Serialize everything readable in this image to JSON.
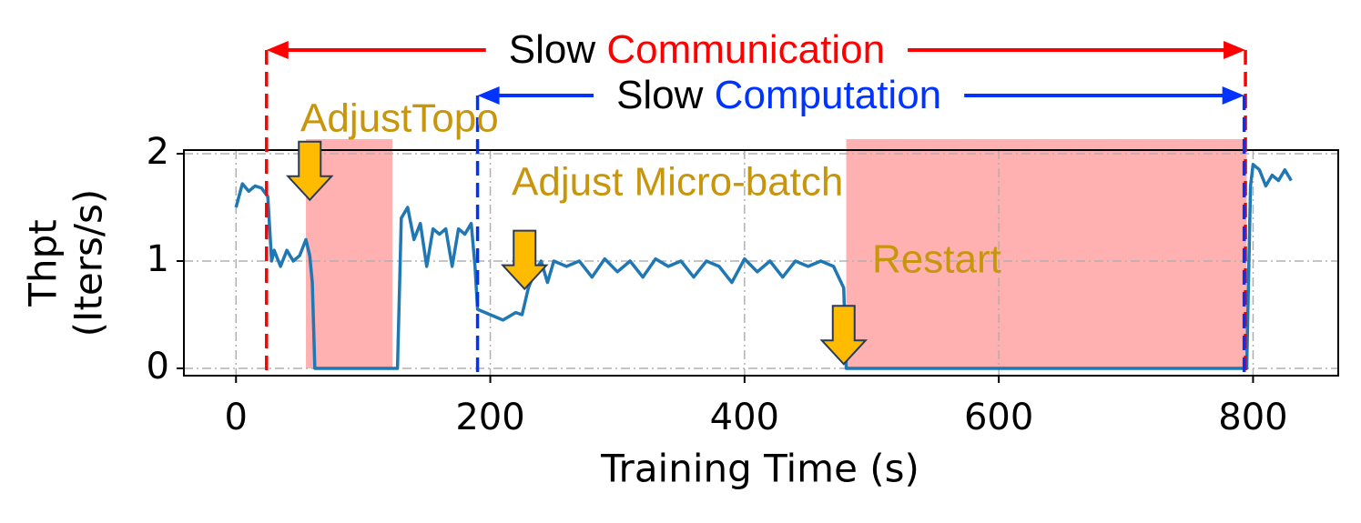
{
  "chart_data": {
    "type": "line",
    "xlabel": "Training Time (s)",
    "ylabel": [
      "Thpt",
      "(Iters/s)"
    ],
    "x": [
      0,
      5,
      10,
      15,
      20,
      25,
      28,
      30,
      35,
      40,
      45,
      50,
      55,
      58,
      60,
      62,
      120,
      127,
      130,
      135,
      140,
      145,
      150,
      155,
      160,
      165,
      170,
      175,
      180,
      185,
      188,
      190,
      200,
      210,
      220,
      225,
      230,
      235,
      240,
      245,
      250,
      260,
      270,
      280,
      290,
      300,
      310,
      320,
      330,
      340,
      350,
      360,
      370,
      380,
      390,
      400,
      410,
      420,
      430,
      440,
      450,
      460,
      470,
      478,
      480,
      795,
      798,
      800,
      805,
      810,
      815,
      820,
      825,
      830
    ],
    "values": [
      1.5,
      1.72,
      1.65,
      1.7,
      1.68,
      1.6,
      1.0,
      1.1,
      0.95,
      1.1,
      1.0,
      1.05,
      1.2,
      1.05,
      0.8,
      0,
      0,
      0,
      1.4,
      1.5,
      1.2,
      1.35,
      0.95,
      1.3,
      1.25,
      1.3,
      0.95,
      1.3,
      1.25,
      1.35,
      0.95,
      0.55,
      0.5,
      0.45,
      0.52,
      0.5,
      0.75,
      0.9,
      1.0,
      0.8,
      1.0,
      0.95,
      1.0,
      0.85,
      1.02,
      0.9,
      1.0,
      0.85,
      1.02,
      0.95,
      1.0,
      0.85,
      1.0,
      0.95,
      0.8,
      1.02,
      0.9,
      1.0,
      0.85,
      1.0,
      0.95,
      1.0,
      0.95,
      0.75,
      0,
      0,
      1.7,
      1.9,
      1.85,
      1.7,
      1.8,
      1.75,
      1.85,
      1.75
    ],
    "color": "#1f77b4",
    "xlim": [
      -41,
      867
    ],
    "ylim": [
      -0.068,
      2.034
    ],
    "xticks": [
      0,
      200,
      400,
      600,
      800
    ],
    "yticks": [
      0,
      1,
      2
    ],
    "grid": true,
    "spans": [
      [
        55,
        123
      ],
      [
        480,
        795
      ]
    ],
    "span_color": "#ffb0b0",
    "periods": [
      {
        "text": "Slow",
        "highlight": "Communication",
        "color": "#ff0000",
        "start": 24,
        "end": 794
      },
      {
        "text": "Slow",
        "highlight": "Computation",
        "color": "#0033ff",
        "start": 190,
        "end": 793
      }
    ],
    "events": [
      {
        "text": "AdjustTopo",
        "x": 58,
        "y": 1.57
      },
      {
        "text": "Adjust Micro-batch",
        "x": 227,
        "y": 0.74
      },
      {
        "text": "Restart",
        "x": 478,
        "y": 0.04
      }
    ],
    "event_color": "#c8960c",
    "marker_color": "#ffbb00"
  }
}
